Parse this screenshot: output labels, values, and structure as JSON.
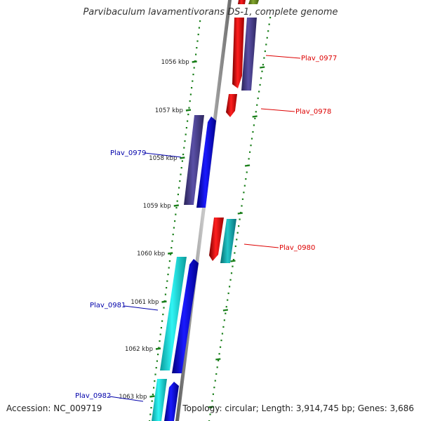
{
  "title": "Parvibaculum lavamentivorans DS-1, complete genome",
  "footer": {
    "accession": "Accession: NC_009719",
    "topology": "Topology: circular; Length: 3,914,745 bp; Genes: 3,686"
  },
  "ticks": [
    "1056 kbp",
    "1057 kbp",
    "1058 kbp",
    "1059 kbp",
    "1060 kbp",
    "1061 kbp",
    "1062 kbp",
    "1063 kbp"
  ],
  "genes": [
    {
      "id": "g-0977",
      "label": "Plav_0977",
      "color": "#dd0000",
      "strand": "right"
    },
    {
      "id": "g-0978",
      "label": "Plav_0978",
      "color": "#dd0000",
      "strand": "right"
    },
    {
      "id": "g-0979",
      "label": "Plav_0979",
      "color": "#0000aa",
      "strand": "left"
    },
    {
      "id": "g-0980",
      "label": "Plav_0980",
      "color": "#dd0000",
      "strand": "right"
    },
    {
      "id": "g-0981",
      "label": "Plav_0981",
      "color": "#0000aa",
      "strand": "left"
    },
    {
      "id": "g-0982",
      "label": "Plav_0982",
      "color": "#0000aa",
      "strand": "left"
    }
  ],
  "colors": {
    "red": "#ee0000",
    "blue": "#0000ee",
    "slate": "#4a3f8f",
    "cyan": "#14dede",
    "teal": "#1aaeb0",
    "olive": "#6e8e1f",
    "dots": "#1a7f1a",
    "axis": "#808080"
  }
}
